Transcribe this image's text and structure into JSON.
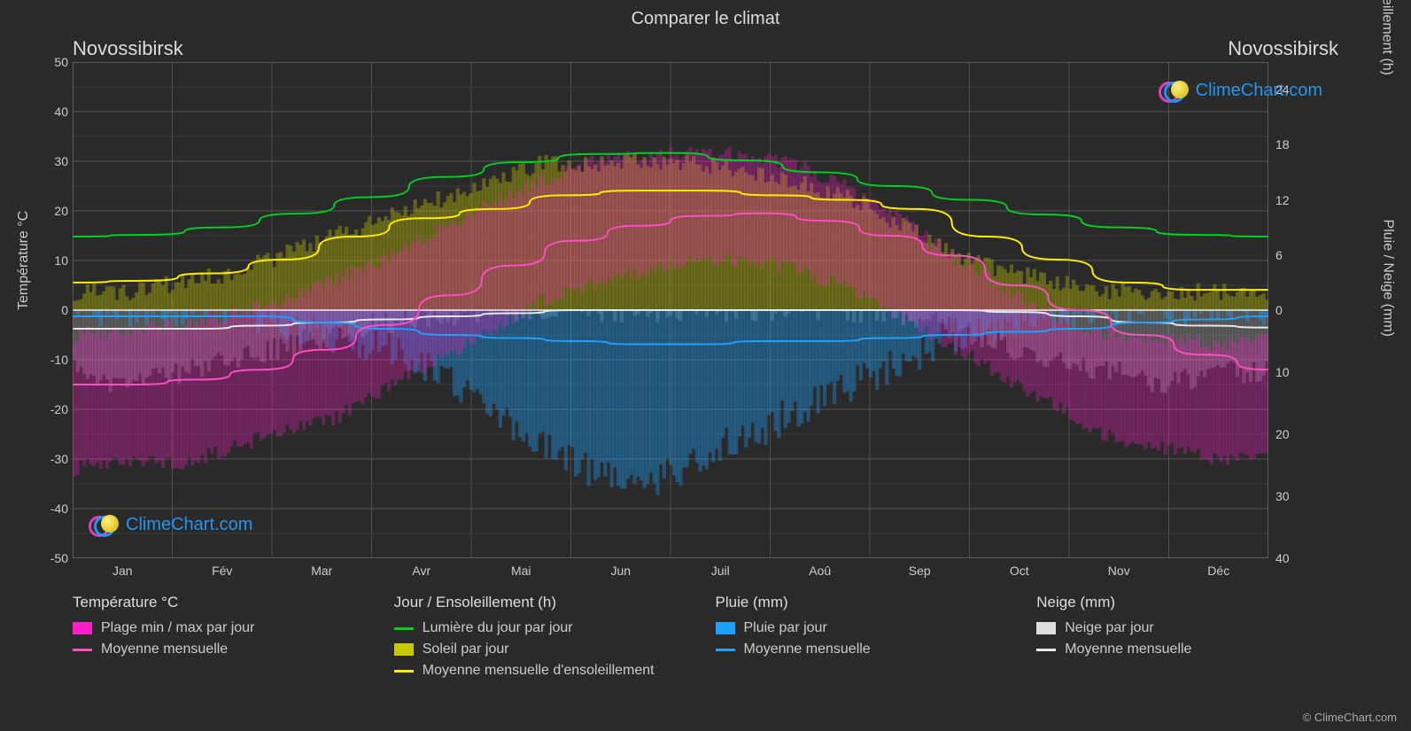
{
  "title": "Comparer le climat",
  "city_left": "Novossibirsk",
  "city_right": "Novossibirsk",
  "copyright": "© ClimeChart.com",
  "logo_text": "ClimeChart.com",
  "logo_colors": {
    "ring1": "#e040c0",
    "ring2": "#2196f3",
    "disc": "#f5d020"
  },
  "chart": {
    "bg": "#2a2a2a",
    "grid_color": "#666666",
    "grid_minor": "#555555",
    "zero_line": "#ffffff",
    "months": [
      "Jan",
      "Fév",
      "Mar",
      "Avr",
      "Mai",
      "Jun",
      "Juil",
      "Aoû",
      "Sep",
      "Oct",
      "Nov",
      "Déc"
    ],
    "x_domain": [
      0,
      12
    ],
    "y_left": {
      "label": "Température °C",
      "min": -50,
      "max": 50,
      "ticks": [
        -50,
        -40,
        -30,
        -20,
        -10,
        0,
        10,
        20,
        30,
        40,
        50
      ]
    },
    "y_right_top": {
      "label": "Jour / Ensoleillement (h)",
      "min": 0,
      "max": 27,
      "ticks": [
        0,
        6,
        12,
        18,
        24
      ]
    },
    "y_right_bot": {
      "label": "Pluie / Neige (mm)",
      "min": 0,
      "max": 40,
      "ticks": [
        0,
        10,
        20,
        30,
        40
      ]
    },
    "series": {
      "daylight": {
        "color": "#00d020",
        "width": 2,
        "values": [
          8,
          8.2,
          9,
          10.5,
          12.3,
          14.5,
          16.1,
          17,
          17.1,
          16.3,
          15,
          13.5,
          12,
          10.4,
          9,
          8.2,
          8
        ]
      },
      "sunshine_avg": {
        "color": "#ffee00",
        "width": 2,
        "values": [
          3,
          3.2,
          4,
          5.5,
          8,
          10,
          11,
          12.5,
          13,
          13,
          12.5,
          12,
          11,
          8,
          5.5,
          3,
          2.2,
          2.2
        ]
      },
      "temp_avg": {
        "color": "#ff4dc4",
        "width": 2,
        "values": [
          -15,
          -15,
          -14,
          -12,
          -8,
          -3,
          3,
          9,
          14,
          17,
          19,
          19.5,
          18,
          15,
          11,
          5,
          0,
          -5,
          -9,
          -12
        ]
      },
      "rain_avg": {
        "color": "#1ea0ff",
        "width": 2,
        "values": [
          1,
          1,
          1,
          1,
          2,
          3,
          4,
          4.5,
          5,
          5.5,
          5.5,
          5,
          5,
          4.5,
          4,
          3.5,
          3,
          2,
          1.5,
          1
        ]
      },
      "snow_avg": {
        "color": "#e8e8e8",
        "width": 2,
        "values": [
          3,
          3,
          3,
          2.5,
          2,
          1.5,
          1,
          0.5,
          0,
          0,
          0,
          0,
          0,
          0,
          0,
          0.3,
          1,
          2,
          2.5,
          2.8
        ]
      },
      "temp_range_color": "#ff1ec8",
      "sun_bar_color": "#c8c800",
      "rain_bar_color": "#1ea0ff",
      "snow_bar_color": "#cccccc",
      "temp_daily_min": [
        -32,
        -30,
        -31,
        -28,
        -24,
        -22,
        -16,
        -10,
        -4,
        2,
        5,
        8,
        10,
        10,
        8,
        4,
        -2,
        -8,
        -14,
        -20,
        -26,
        -28,
        -30,
        -30
      ],
      "temp_daily_max": [
        -5,
        -4,
        -3,
        -1,
        2,
        6,
        10,
        16,
        22,
        26,
        30,
        31,
        32,
        31,
        29,
        24,
        18,
        10,
        4,
        -2,
        -5,
        -6,
        -7,
        -6
      ],
      "sun_daily": [
        2,
        2,
        3,
        4,
        6,
        8,
        10,
        12,
        14,
        16,
        16,
        16,
        16,
        15,
        14,
        12,
        9,
        6,
        4,
        3,
        2,
        2,
        2,
        2
      ],
      "rain_daily": [
        0,
        0,
        0,
        0,
        2,
        4,
        6,
        10,
        16,
        22,
        26,
        28,
        24,
        20,
        16,
        12,
        8,
        4,
        2,
        0,
        0,
        0,
        0,
        0
      ],
      "snow_daily": [
        10,
        12,
        10,
        8,
        6,
        4,
        2,
        1,
        0,
        0,
        0,
        0,
        0,
        0,
        0,
        0,
        1,
        3,
        6,
        8,
        10,
        12,
        10,
        10
      ]
    }
  },
  "axis_labels": {
    "yl": "Température °C",
    "yr1": "Jour / Ensoleillement (h)",
    "yr2": "Pluie / Neige (mm)"
  },
  "legend": {
    "cols": [
      {
        "title": "Température °C",
        "items": [
          {
            "type": "block",
            "color": "#ff1ec8",
            "label": "Plage min / max par jour"
          },
          {
            "type": "line",
            "color": "#ff4dc4",
            "label": "Moyenne mensuelle"
          }
        ]
      },
      {
        "title": "Jour / Ensoleillement (h)",
        "items": [
          {
            "type": "line",
            "color": "#00d020",
            "label": "Lumière du jour par jour"
          },
          {
            "type": "block",
            "color": "#c8c800",
            "label": "Soleil par jour"
          },
          {
            "type": "line",
            "color": "#ffee00",
            "label": "Moyenne mensuelle d'ensoleillement"
          }
        ]
      },
      {
        "title": "Pluie (mm)",
        "items": [
          {
            "type": "block",
            "color": "#1ea0ff",
            "label": "Pluie par jour"
          },
          {
            "type": "line",
            "color": "#1ea0ff",
            "label": "Moyenne mensuelle"
          }
        ]
      },
      {
        "title": "Neige (mm)",
        "items": [
          {
            "type": "block",
            "color": "#dddddd",
            "label": "Neige par jour"
          },
          {
            "type": "line",
            "color": "#e8e8e8",
            "label": "Moyenne mensuelle"
          }
        ]
      }
    ]
  }
}
